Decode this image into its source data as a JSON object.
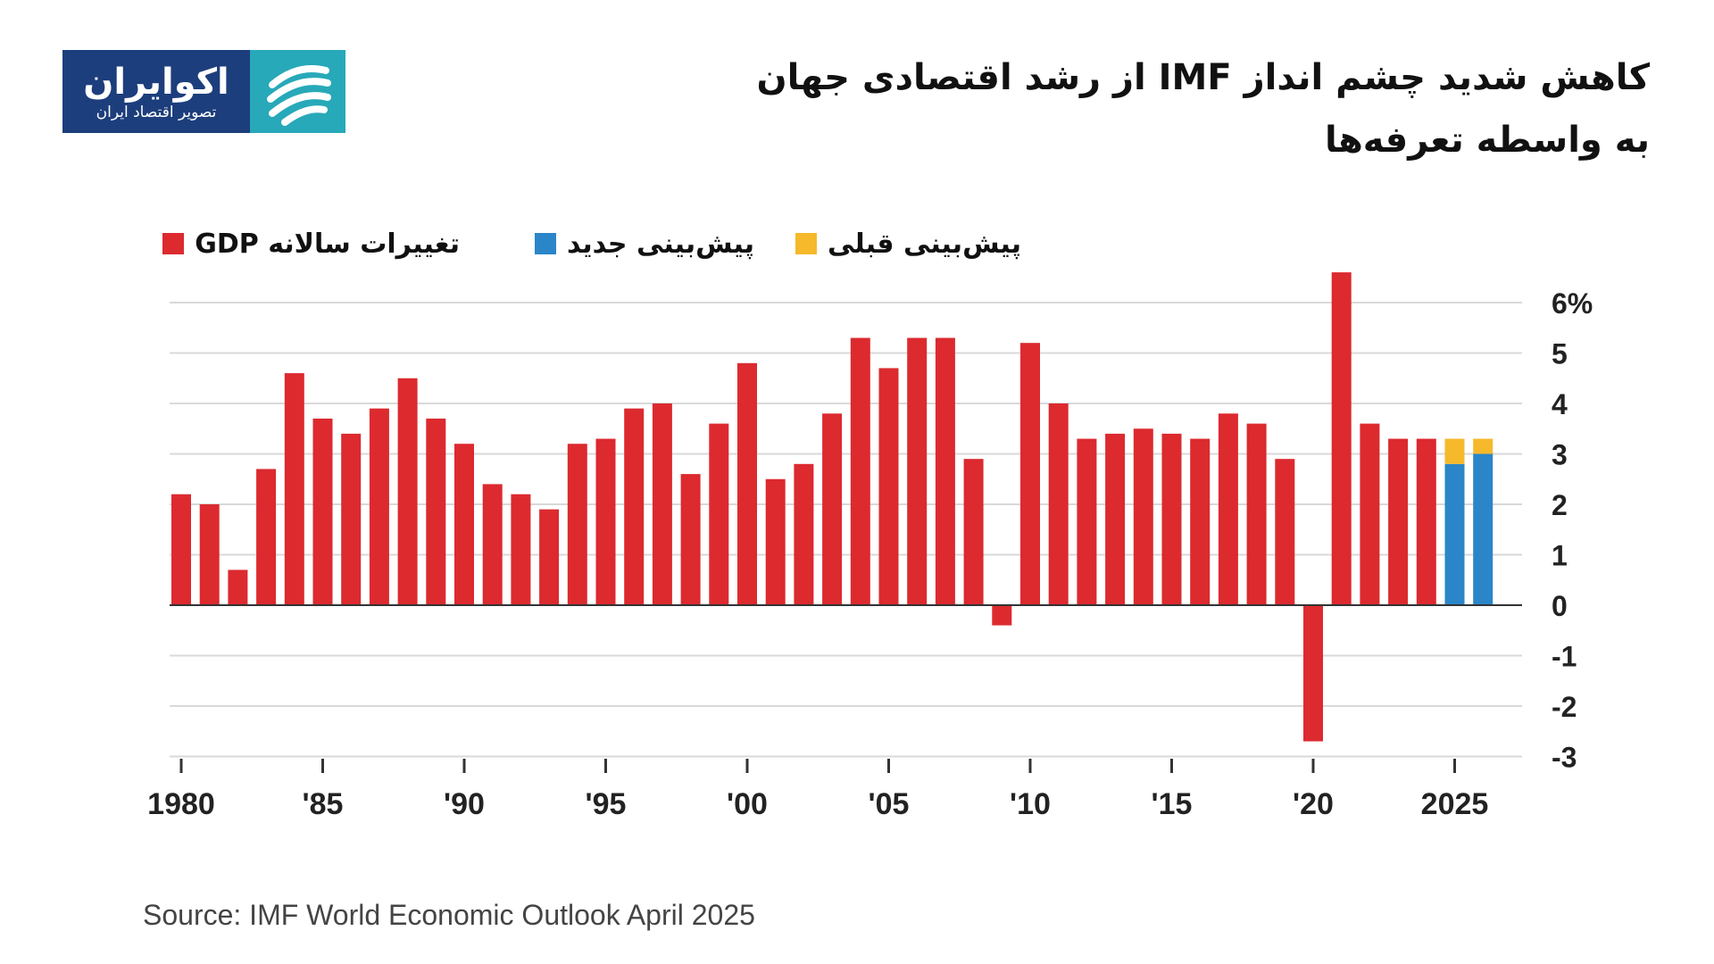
{
  "logo": {
    "name": "اکوایران",
    "tagline": "تصویر اقتصاد ایران",
    "colors": {
      "text_bg": "#1d3e7c",
      "mark_bg": "#27a9b9"
    }
  },
  "title": {
    "line1": "کاهش شدید چشم انداز IMF  از رشد اقتصادی جهان",
    "line2": "به واسطه تعرفه‌ها"
  },
  "legend": [
    {
      "label": "تغییرات سالانه GDP",
      "color": "#dc2a2f"
    },
    {
      "label": "پیش‌بینی جدید",
      "color": "#2a86c8"
    },
    {
      "label": "پیش‌بینی قبلی",
      "color": "#f6b92b"
    }
  ],
  "source": "Source: IMF World Economic Outlook April 2025",
  "chart_data": {
    "type": "bar",
    "title": "کاهش شدید چشم انداز IMF از رشد اقتصادی جهان به واسطه تعرفه‌ها",
    "xlabel": "",
    "ylabel": "",
    "ylim": [
      -3,
      6.5
    ],
    "y_ticks": [
      {
        "value": 6,
        "label": "6%"
      },
      {
        "value": 5,
        "label": "5"
      },
      {
        "value": 4,
        "label": "4"
      },
      {
        "value": 3,
        "label": "3"
      },
      {
        "value": 2,
        "label": "2"
      },
      {
        "value": 1,
        "label": "1"
      },
      {
        "value": 0,
        "label": "0"
      },
      {
        "value": -1,
        "label": "-1"
      },
      {
        "value": -2,
        "label": "-2"
      },
      {
        "value": -3,
        "label": "-3"
      }
    ],
    "x_ticks": [
      {
        "year": 1980,
        "label": "1980"
      },
      {
        "year": 1985,
        "label": "'85"
      },
      {
        "year": 1990,
        "label": "'90"
      },
      {
        "year": 1995,
        "label": "'95"
      },
      {
        "year": 2000,
        "label": "'00"
      },
      {
        "year": 2005,
        "label": "'05"
      },
      {
        "year": 2010,
        "label": "'10"
      },
      {
        "year": 2015,
        "label": "'15"
      },
      {
        "year": 2020,
        "label": "'20"
      },
      {
        "year": 2025,
        "label": "2025"
      }
    ],
    "series": [
      {
        "name": "تغییرات سالانه GDP",
        "color": "#dc2a2f",
        "years": [
          1980,
          1981,
          1982,
          1983,
          1984,
          1985,
          1986,
          1987,
          1988,
          1989,
          1990,
          1991,
          1992,
          1993,
          1994,
          1995,
          1996,
          1997,
          1998,
          1999,
          2000,
          2001,
          2002,
          2003,
          2004,
          2005,
          2006,
          2007,
          2008,
          2009,
          2010,
          2011,
          2012,
          2013,
          2014,
          2015,
          2016,
          2017,
          2018,
          2019,
          2020,
          2021,
          2022,
          2023,
          2024
        ],
        "values": [
          2.2,
          2.0,
          0.7,
          2.7,
          4.6,
          3.7,
          3.4,
          3.9,
          4.5,
          3.7,
          3.2,
          2.4,
          2.2,
          1.9,
          3.2,
          3.3,
          3.9,
          4.0,
          2.6,
          3.6,
          4.8,
          2.5,
          2.8,
          3.8,
          5.3,
          4.7,
          5.3,
          5.3,
          2.9,
          -0.4,
          5.2,
          4.0,
          3.3,
          3.4,
          3.5,
          3.4,
          3.3,
          3.8,
          3.6,
          2.9,
          -2.7,
          6.6,
          3.6,
          3.3,
          3.3
        ]
      },
      {
        "name": "پیش‌بینی جدید",
        "color": "#2a86c8",
        "years": [
          2025,
          2026
        ],
        "values": [
          2.8,
          3.0
        ]
      },
      {
        "name": "پیش‌بینی قبلی",
        "color": "#f6b92b",
        "years": [
          2025,
          2026
        ],
        "values": [
          3.3,
          3.3
        ]
      }
    ]
  }
}
